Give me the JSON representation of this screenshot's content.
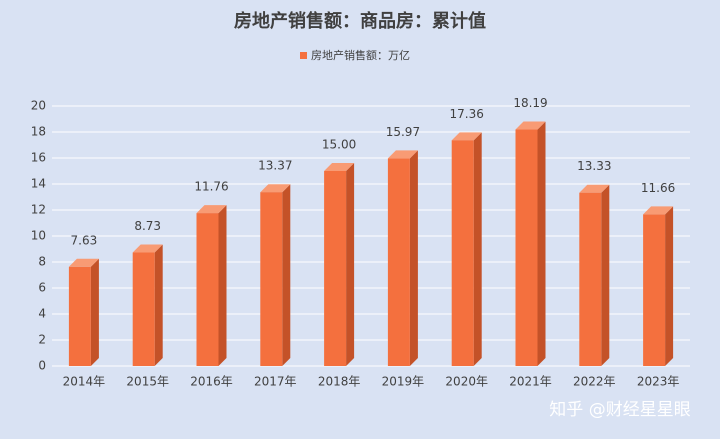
{
  "chart_data": {
    "type": "bar3d",
    "title": "房地产销售额：商品房：累计值",
    "categories": [
      "2014年",
      "2015年",
      "2016年",
      "2017年",
      "2018年",
      "2019年",
      "2020年",
      "2021年",
      "2022年",
      "2023年"
    ],
    "series": [
      {
        "name": "房地产销售额：万亿",
        "color": "#f4703e",
        "values": [
          7.63,
          8.73,
          11.76,
          13.37,
          15.0,
          15.97,
          17.36,
          18.19,
          13.33,
          11.66
        ],
        "value_labels": [
          "7.63",
          "8.73",
          "11.76",
          "13.37",
          "15.00",
          "15.97",
          "17.36",
          "18.19",
          "13.33",
          "11.66"
        ]
      }
    ],
    "ylim": [
      0,
      20
    ],
    "yticks": [
      0,
      2,
      4,
      6,
      8,
      10,
      12,
      14,
      16,
      18,
      20
    ],
    "grid": true,
    "legend": "top"
  },
  "watermark": "知乎 @财经星星眼"
}
